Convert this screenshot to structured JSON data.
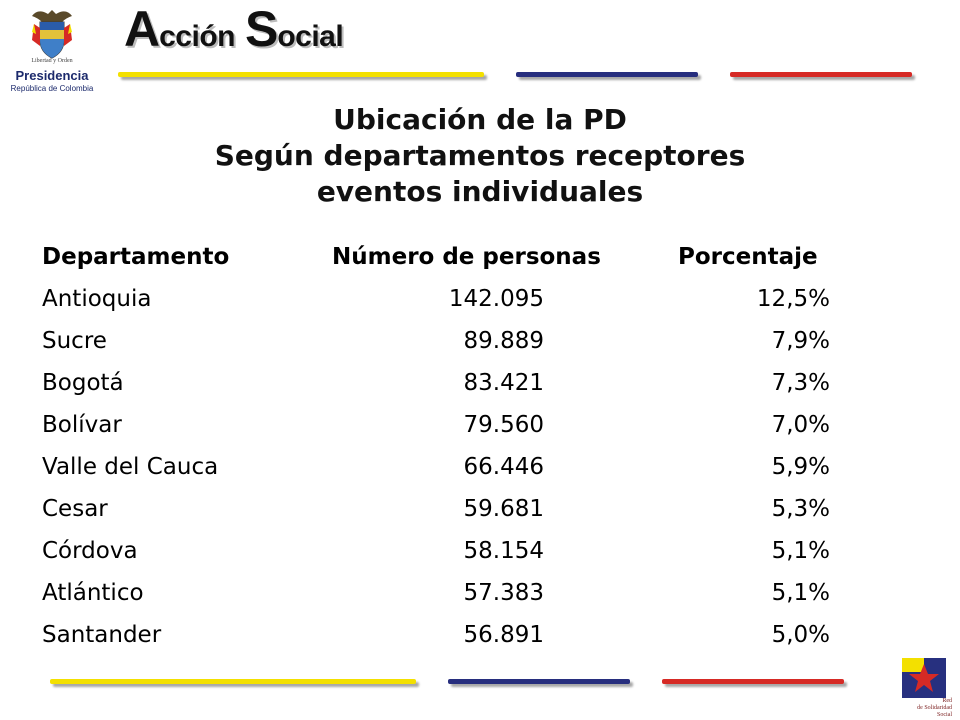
{
  "header": {
    "seal_motto": "Libertad y Orden",
    "presidency_title": "Presidencia",
    "presidency_subtitle": "República de Colombia",
    "brand_word1_cap": "A",
    "brand_word1_rest": "cción",
    "brand_word2_cap": "S",
    "brand_word2_rest": "ocial"
  },
  "title": {
    "line1": "Ubicación de la PD",
    "line2": "Según departamentos receptores",
    "line3": "eventos individuales"
  },
  "table": {
    "headers": [
      "Departamento",
      "Número de personas",
      "Porcentaje"
    ],
    "rows": [
      {
        "departamento": "Antioquia",
        "personas": "142.095",
        "porcentaje": "12,5%"
      },
      {
        "departamento": "Sucre",
        "personas": "89.889",
        "porcentaje": "7,9%"
      },
      {
        "departamento": "Bogotá",
        "personas": "83.421",
        "porcentaje": "7,3%"
      },
      {
        "departamento": "Bolívar",
        "personas": "79.560",
        "porcentaje": "7,0%"
      },
      {
        "departamento": "Valle del Cauca",
        "personas": "66.446",
        "porcentaje": "5,9%"
      },
      {
        "departamento": "Cesar",
        "personas": "59.681",
        "porcentaje": "5,3%"
      },
      {
        "departamento": "Córdova",
        "personas": "58.154",
        "porcentaje": "5,1%"
      },
      {
        "departamento": "Atlántico",
        "personas": "57.383",
        "porcentaje": "5,1%"
      },
      {
        "departamento": "Santander",
        "personas": "56.891",
        "porcentaje": "5,0%"
      }
    ]
  },
  "footer_logo": {
    "text_line1": "Red",
    "text_line2": "de Solidaridad",
    "text_line3": "Social"
  },
  "colors": {
    "yellow_bar": "#f3e000",
    "blue_bar": "#272e7e",
    "red_bar": "#d62a25",
    "presidency_blue": "#1c2a6c"
  },
  "icons": {
    "seal": "colombia-coat-of-arms-icon",
    "footer": "red-de-solidaridad-star-icon"
  }
}
